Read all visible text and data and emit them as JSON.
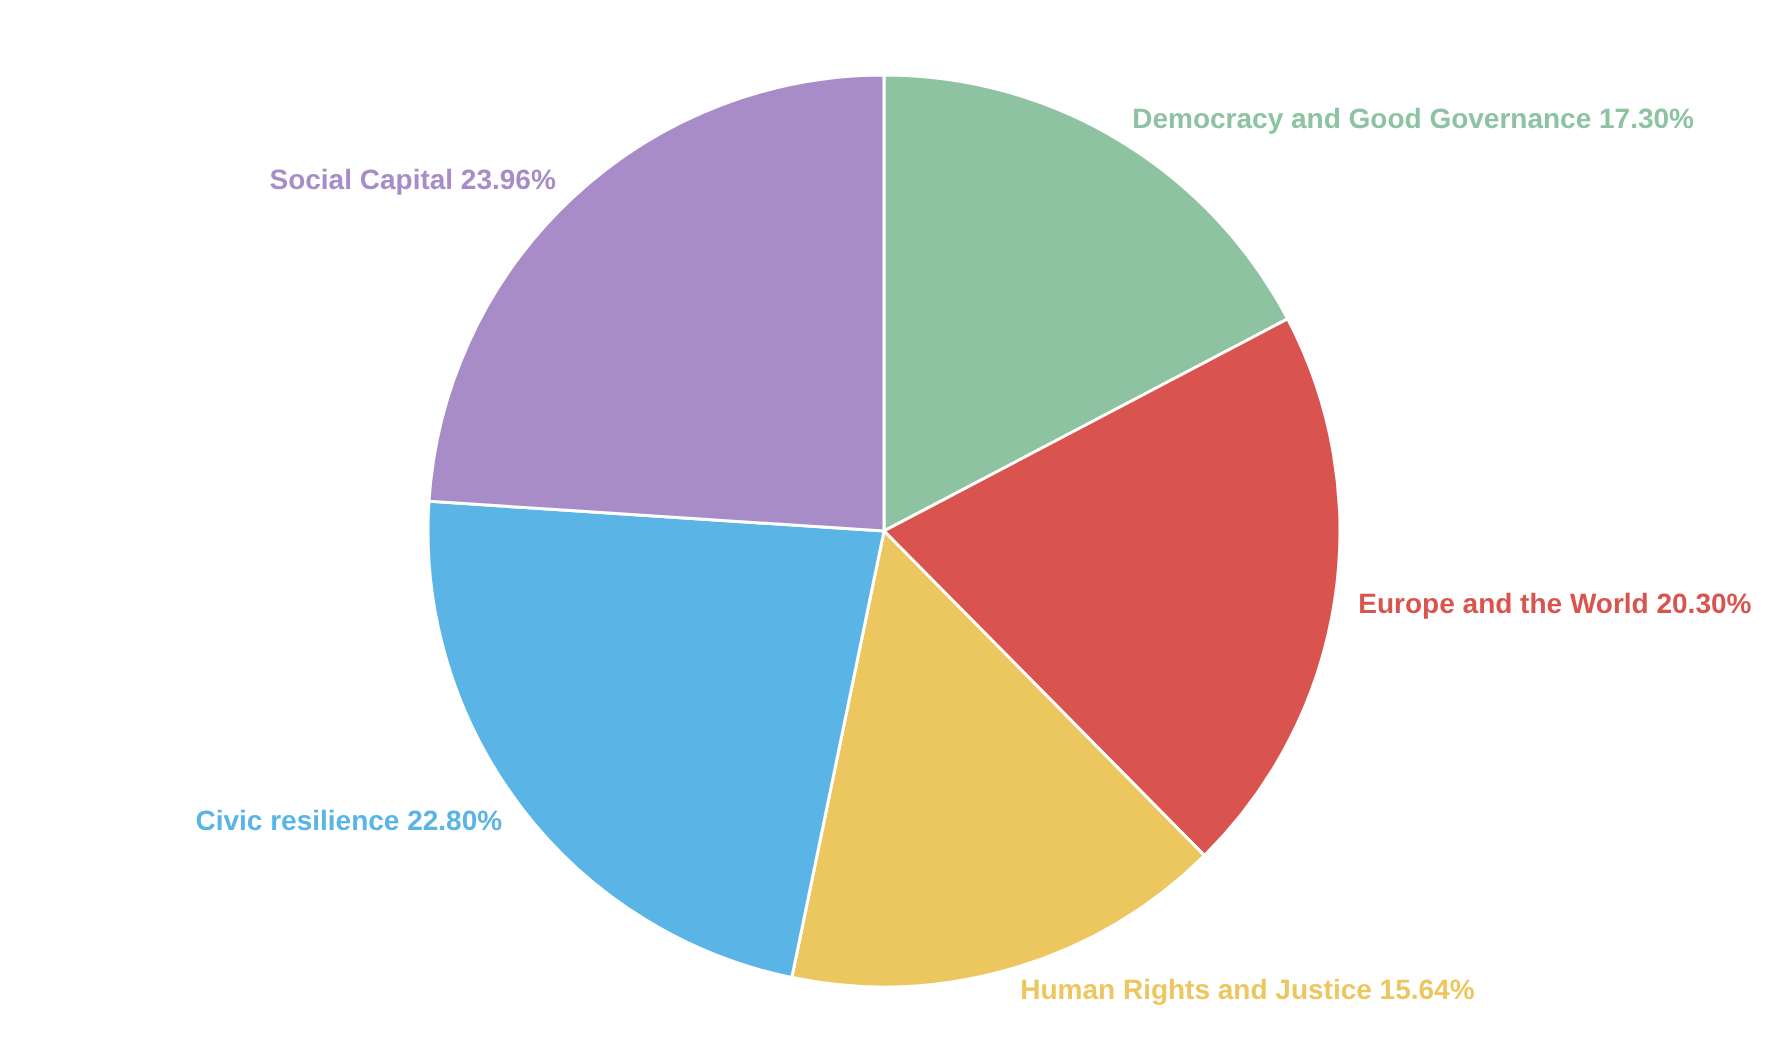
{
  "chart_data": {
    "type": "pie",
    "categories": [
      "Democracy and Good Governance",
      "Europe and the World",
      "Human Rights and Justice",
      "Civic resilience",
      "Social Capital"
    ],
    "values": [
      17.3,
      20.3,
      15.64,
      22.8,
      23.96
    ],
    "value_labels": [
      "17.30%",
      "20.30%",
      "15.64%",
      "22.80%",
      "23.96%"
    ],
    "colors": [
      "#8dc3a0",
      "#d9534f",
      "#ecc65e",
      "#5ab4e5",
      "#a78cc7"
    ],
    "legend": false
  }
}
